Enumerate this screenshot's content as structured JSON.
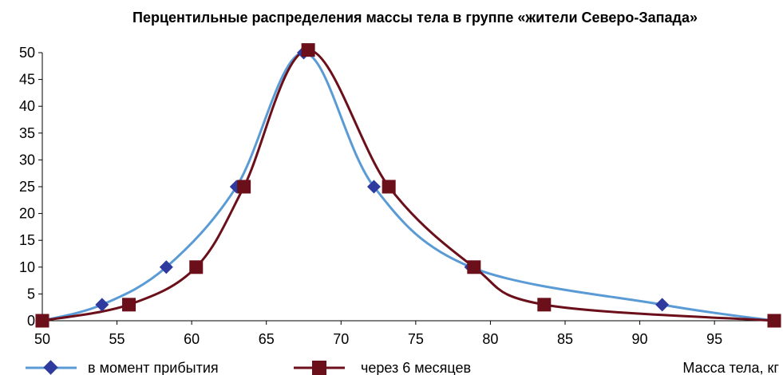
{
  "chart_data": {
    "type": "line",
    "title": "Перцентильные распределения массы тела в группе «жители Северо-Запада»",
    "xlabel": "Масса тела, кг",
    "ylabel": "",
    "xlim": [
      50,
      99
    ],
    "ylim": [
      0,
      50
    ],
    "xticks": [
      "50",
      "55",
      "60",
      "65",
      "70",
      "75",
      "80",
      "85",
      "90",
      "95"
    ],
    "yticks": [
      "0",
      "5",
      "10",
      "15",
      "20",
      "25",
      "30",
      "35",
      "40",
      "45",
      "50"
    ],
    "grid": false,
    "legend_position": "bottom-left",
    "series": [
      {
        "name": "в момент прибытия",
        "color": "#5B9BD5",
        "marker_color": "#2E3A9E",
        "marker": "diamond-icon",
        "points": [
          [
            50,
            0
          ],
          [
            54,
            3
          ],
          [
            58.3,
            10
          ],
          [
            63,
            25
          ],
          [
            67.5,
            50
          ],
          [
            72.2,
            25
          ],
          [
            78.7,
            10
          ],
          [
            91.5,
            3
          ],
          [
            99,
            0
          ]
        ]
      },
      {
        "name": "через 6 месяцев",
        "color": "#6B0F1A",
        "marker_color": "#6B0F1A",
        "marker": "square-icon",
        "points": [
          [
            50,
            0
          ],
          [
            55.8,
            3
          ],
          [
            60.3,
            10
          ],
          [
            63.5,
            25
          ],
          [
            67.8,
            50.5
          ],
          [
            73.2,
            25
          ],
          [
            78.9,
            10
          ],
          [
            83.6,
            3
          ],
          [
            99,
            0
          ]
        ]
      }
    ]
  }
}
